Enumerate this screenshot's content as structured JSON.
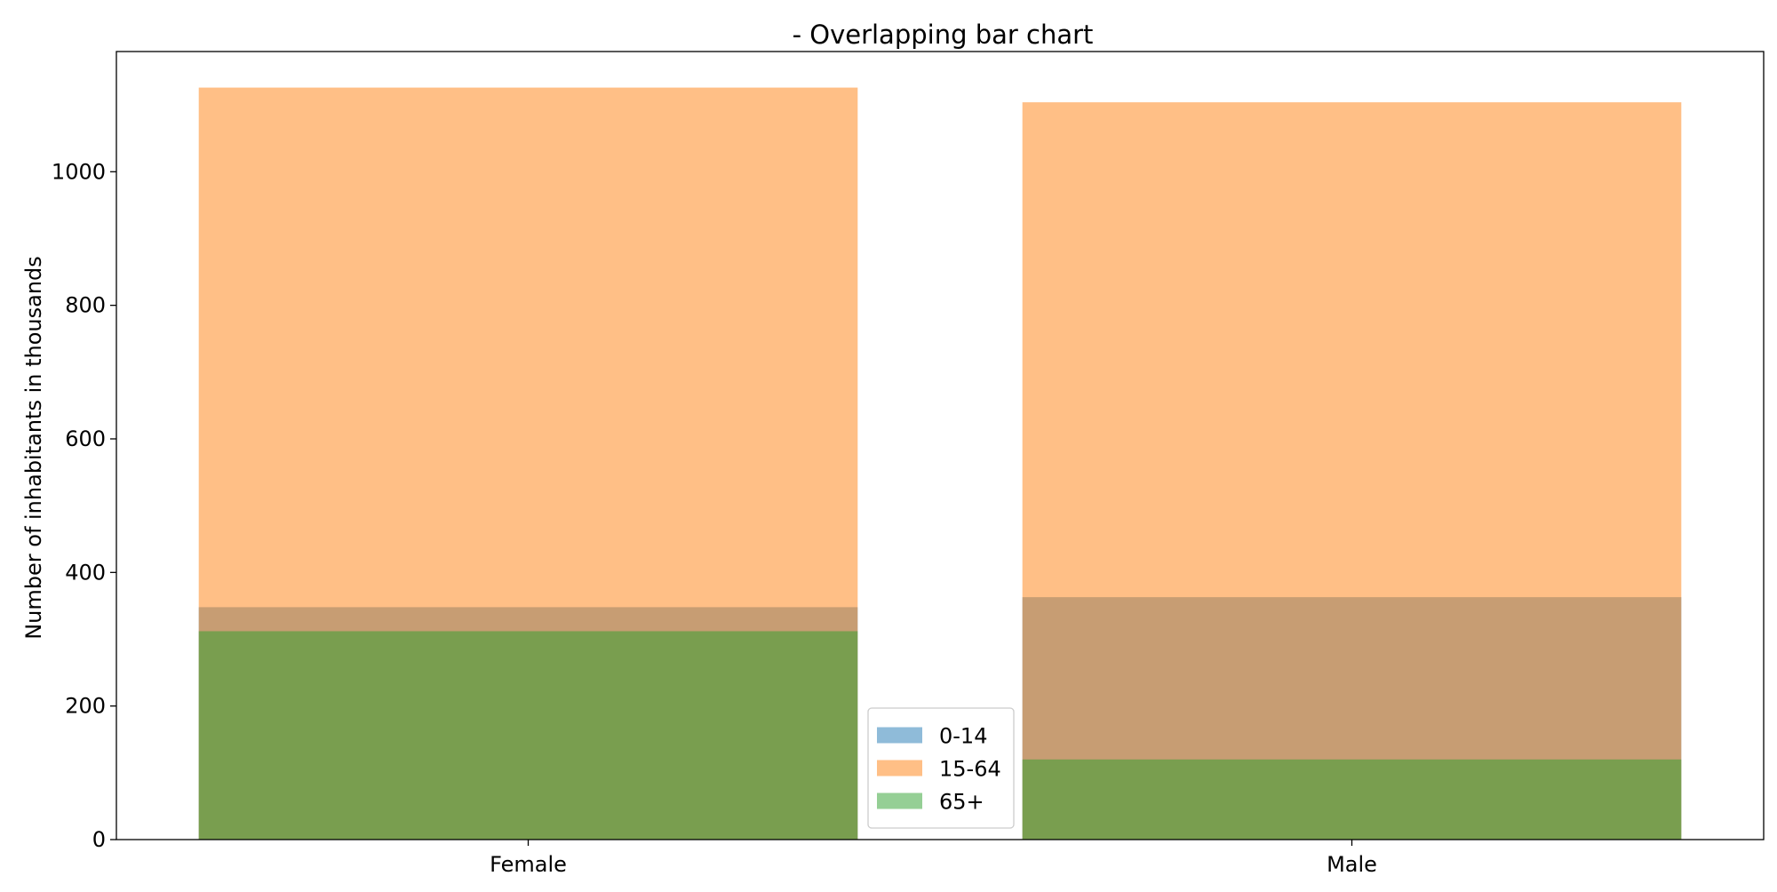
{
  "chart_data": {
    "type": "bar",
    "title": "- Overlapping bar chart",
    "xlabel": "",
    "ylabel": "Number of inhabitants in thousands",
    "categories": [
      "Female",
      "Male"
    ],
    "series": [
      {
        "name": "0-14",
        "values": [
          348,
          363
        ],
        "color": "#1f77b4"
      },
      {
        "name": "15-64",
        "values": [
          1126,
          1104
        ],
        "color": "#ff7f0e"
      },
      {
        "name": "65+",
        "values": [
          312,
          120
        ],
        "color": "#2ca02c"
      }
    ],
    "ylim": [
      0,
      1180
    ],
    "yticks": [
      0,
      200,
      400,
      600,
      800,
      1000
    ],
    "grid": false,
    "legend_position": "bottom-center"
  }
}
